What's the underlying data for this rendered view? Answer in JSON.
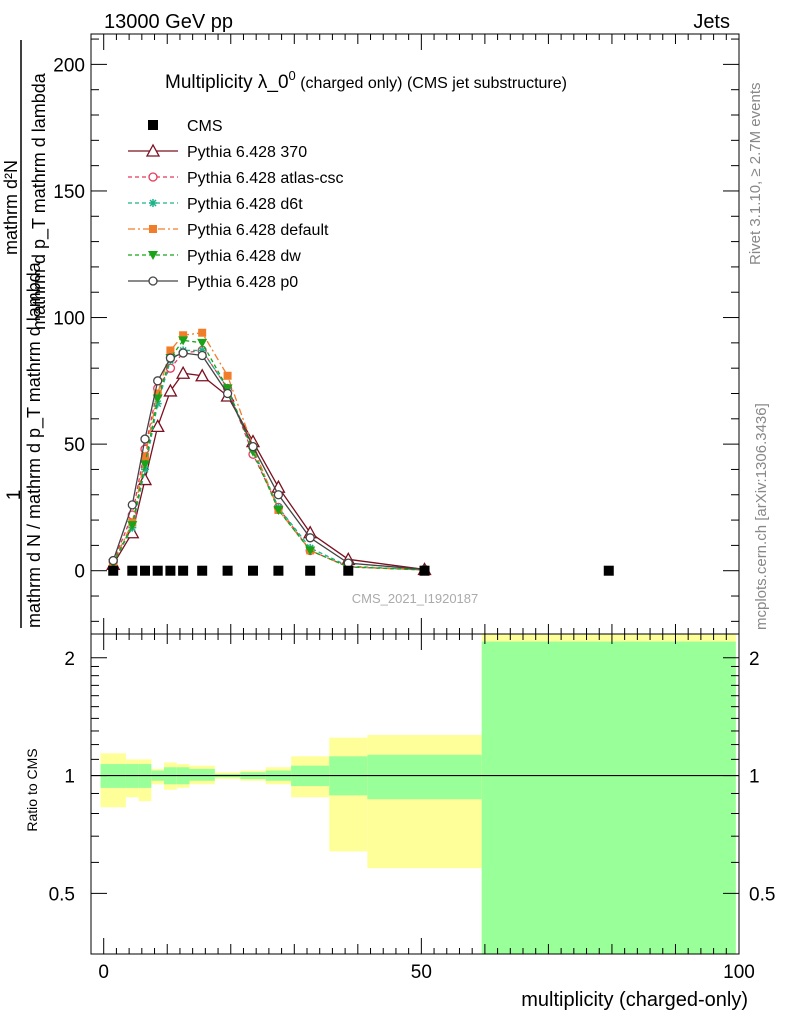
{
  "header": {
    "left": "13000 GeV pp",
    "right": "Jets"
  },
  "side": {
    "rivet": "Rivet 3.1.10, ≥ 2.7M events",
    "mcplots": "mcplots.cern.ch [arXiv:1306.3436]"
  },
  "chart_data": [
    {
      "type": "line",
      "title": "Multiplicity λ_0",
      "title_sup": "0",
      "title_suffix": " (charged only) (CMS jet substructure)",
      "ylabel": "mathrm d N / mathrm d p_T mathrm d lambda",
      "ylabel_top": "mathrm d²N",
      "ylabel_bottom": "mathrm d p_T mathrm d lambda",
      "ylabel_num": "1",
      "ylim": [
        -25,
        212
      ],
      "xlim": [
        -2,
        100
      ],
      "yticks": [
        "0",
        "50",
        "100",
        "150",
        "200"
      ],
      "ytick_values": [
        0,
        50,
        100,
        150,
        200
      ],
      "watermark": "CMS_2021_I1920187",
      "legend_position": "top-left",
      "legend": [
        "CMS",
        "Pythia 6.428 370",
        "Pythia 6.428 atlas-csc",
        "Pythia 6.428 d6t",
        "Pythia 6.428 default",
        "Pythia 6.428 dw",
        "Pythia 6.428 p0"
      ],
      "x": [
        1.5,
        4.5,
        6.5,
        8.5,
        10.5,
        12.5,
        15.5,
        19.5,
        23.5,
        27.5,
        32.5,
        38.5,
        50.5
      ],
      "data_points": {
        "x": [
          1.5,
          4.5,
          6.5,
          8.5,
          10.5,
          12.5,
          15.5,
          19.5,
          23.5,
          27.5,
          32.5,
          38.5,
          50.5,
          79.5
        ],
        "y": [
          0,
          0,
          0,
          0,
          0,
          0,
          0,
          0,
          0,
          0,
          0,
          0,
          0,
          0
        ]
      },
      "series": [
        {
          "name": "Pythia 6.428 370",
          "color": "#7b1020",
          "marker": "triangle-open",
          "dash": "",
          "values": [
            2.5,
            15,
            36,
            57,
            71,
            78,
            77,
            69,
            51,
            33,
            15,
            4.5,
            0.5
          ]
        },
        {
          "name": "Pythia 6.428 atlas-csc",
          "color": "#e8375a",
          "marker": "circle-open",
          "dash": "4,3",
          "values": [
            3.5,
            22,
            48,
            72,
            80,
            86,
            87,
            72,
            46,
            25,
            8,
            1.5,
            0.3
          ]
        },
        {
          "name": "Pythia 6.428 d6t",
          "color": "#1bb38a",
          "marker": "star",
          "dash": "4,3",
          "values": [
            3,
            17,
            40,
            66,
            83,
            87,
            87,
            72,
            48,
            25,
            9,
            1.8,
            0.3
          ]
        },
        {
          "name": "Pythia 6.428 default",
          "color": "#f07d2a",
          "marker": "square",
          "dash": "7,3,2,3",
          "values": [
            3,
            19,
            45,
            70,
            87,
            93,
            94,
            77,
            49,
            24,
            8,
            1.5,
            0.3
          ]
        },
        {
          "name": "Pythia 6.428 dw",
          "color": "#18a318",
          "marker": "triangle-down",
          "dash": "4,3",
          "values": [
            3,
            18,
            42,
            68,
            84,
            91,
            90,
            72,
            47,
            24,
            8,
            1.5,
            0.3
          ]
        },
        {
          "name": "Pythia 6.428 p0",
          "color": "#444444",
          "marker": "circle-open",
          "dash": "",
          "values": [
            4,
            26,
            52,
            75,
            84,
            86,
            85,
            70,
            49,
            30,
            13,
            3,
            0.5
          ]
        }
      ]
    },
    {
      "type": "area",
      "ylabel": "Ratio to CMS",
      "xlabel": "multiplicity (charged-only)",
      "ylim": [
        0.35,
        2.3
      ],
      "xlim": [
        -2,
        100
      ],
      "xticks": [
        "0",
        "50",
        "100"
      ],
      "xtick_values": [
        0,
        50,
        100
      ],
      "yticks": [
        "0.5",
        "1",
        "2"
      ],
      "ytick_values": [
        0.5,
        1,
        2
      ],
      "reference": 1,
      "bins": [
        {
          "x": [
            -0.5,
            3.5
          ],
          "stat": [
            0.93,
            1.07
          ],
          "total": [
            0.83,
            1.14
          ]
        },
        {
          "x": [
            3.5,
            5.5
          ],
          "stat": [
            0.93,
            1.07
          ],
          "total": [
            0.88,
            1.1
          ]
        },
        {
          "x": [
            5.5,
            7.5
          ],
          "stat": [
            0.93,
            1.07
          ],
          "total": [
            0.86,
            1.1
          ]
        },
        {
          "x": [
            7.5,
            9.5
          ],
          "stat": [
            0.97,
            1.03
          ],
          "total": [
            0.95,
            1.04
          ]
        },
        {
          "x": [
            9.5,
            11.5
          ],
          "stat": [
            0.95,
            1.05
          ],
          "total": [
            0.92,
            1.08
          ]
        },
        {
          "x": [
            11.5,
            13.5
          ],
          "stat": [
            0.95,
            1.05
          ],
          "total": [
            0.93,
            1.07
          ]
        },
        {
          "x": [
            13.5,
            17.5
          ],
          "stat": [
            0.97,
            1.04
          ],
          "total": [
            0.95,
            1.06
          ]
        },
        {
          "x": [
            17.5,
            21.5
          ],
          "stat": [
            0.99,
            1.01
          ],
          "total": [
            0.98,
            1.02
          ]
        },
        {
          "x": [
            21.5,
            25.5
          ],
          "stat": [
            0.98,
            1.02
          ],
          "total": [
            0.97,
            1.03
          ]
        },
        {
          "x": [
            25.5,
            29.5
          ],
          "stat": [
            0.97,
            1.03
          ],
          "total": [
            0.95,
            1.05
          ]
        },
        {
          "x": [
            29.5,
            35.5
          ],
          "stat": [
            0.94,
            1.06
          ],
          "total": [
            0.88,
            1.12
          ]
        },
        {
          "x": [
            35.5,
            41.5
          ],
          "stat": [
            0.89,
            1.12
          ],
          "total": [
            0.64,
            1.25
          ]
        },
        {
          "x": [
            41.5,
            59.5
          ],
          "stat": [
            0.87,
            1.13
          ],
          "total": [
            0.58,
            1.27
          ]
        },
        {
          "x": [
            59.5,
            99.5
          ],
          "stat": [
            0.35,
            2.2
          ],
          "total": [
            0.35,
            2.3
          ]
        }
      ]
    }
  ]
}
